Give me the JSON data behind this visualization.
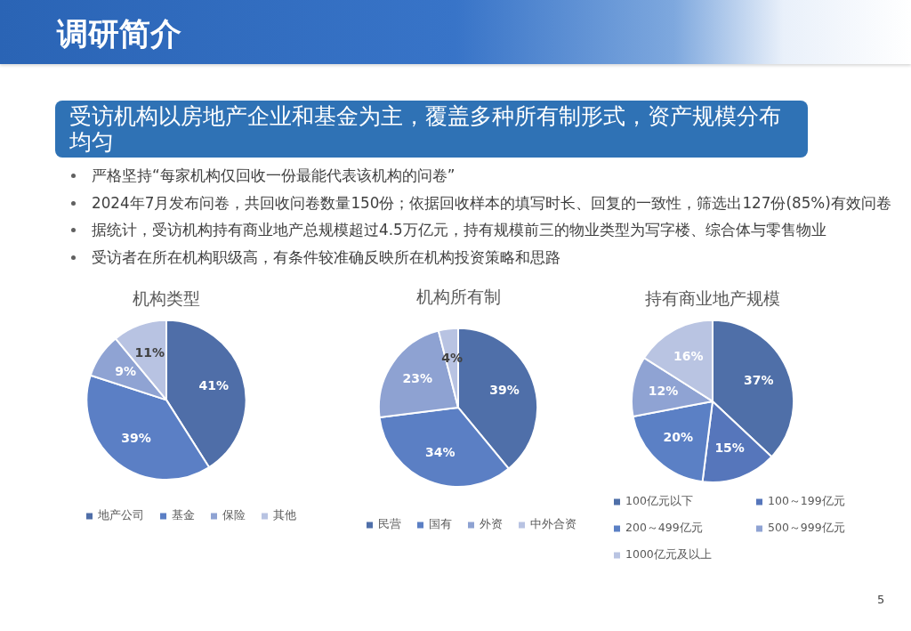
{
  "chart_data": [
    {
      "type": "other",
      "title": "调研简介",
      "subtitle": "受访机构以房地产企业和基金为主，覆盖多种所有制形式，资产规模分布均匀",
      "annotations": [
        "严格坚持“每家机构仅回收一份最能代表该机构的问卷”",
        "2024年7月发布问卷，共回收问卷数量150份；依据回收样本的填写时长、回复的一致性，筛选出127份(85%)有效问卷",
        "据统计，受访机构持有商业地产总规模超过4.5万亿元，持有规模前三的物业类型为写字楼、综合体与零售物业",
        "受访者在所在机构职级高，有条件较准确反映所在机构投资策略和思路",
        "5"
      ]
    },
    {
      "type": "pie",
      "title": "机构类型",
      "categories": [
        "地产公司",
        "基金",
        "保险",
        "其他"
      ],
      "values": [
        41,
        39,
        9,
        11
      ],
      "value_labels": [
        "41%",
        "39%",
        "9%",
        "11%"
      ],
      "colors": [
        "#4f6ea8",
        "#5b7fc5",
        "#8fa3d3",
        "#b8c3e2"
      ],
      "legend": "bottom"
    },
    {
      "type": "pie",
      "title": "机构所有制",
      "categories": [
        "民营",
        "国有",
        "外资",
        "中外合资"
      ],
      "values": [
        39,
        34,
        23,
        4
      ],
      "value_labels": [
        "39%",
        "34%",
        "23%",
        "4%"
      ],
      "colors": [
        "#4f6fa9",
        "#5b7fc4",
        "#8ea2d2",
        "#b8c3e2"
      ],
      "legend": "bottom"
    },
    {
      "type": "pie",
      "title": "持有商业地产规模",
      "categories": [
        "100亿元以下",
        "100～199亿元",
        "200～499亿元",
        "500～999亿元",
        "1000亿元及以上"
      ],
      "values": [
        37,
        15,
        20,
        12,
        16
      ],
      "value_labels": [
        "37%",
        "15%",
        "20%",
        "12%",
        "16%"
      ],
      "colors": [
        "#4f6fa8",
        "#5676bb",
        "#5b80c5",
        "#8fa3d3",
        "#b9c4e2"
      ],
      "legend": "bottom"
    }
  ]
}
